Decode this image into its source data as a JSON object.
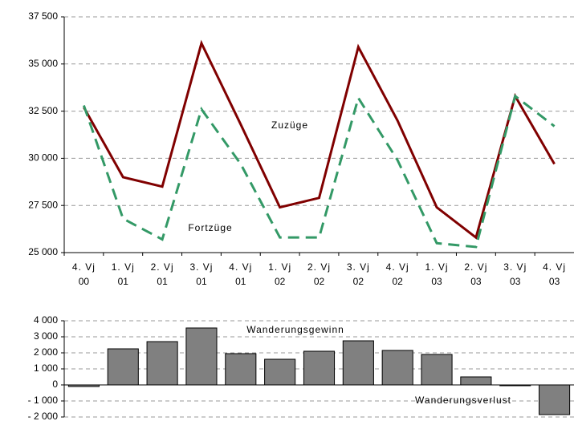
{
  "chart_data": [
    {
      "type": "line",
      "categories": [
        [
          "4. Vj",
          "00"
        ],
        [
          "1. Vj",
          "01"
        ],
        [
          "2. Vj",
          "01"
        ],
        [
          "3. Vj",
          "01"
        ],
        [
          "4. Vj",
          "01"
        ],
        [
          "1. Vj",
          "02"
        ],
        [
          "2. Vj",
          "02"
        ],
        [
          "3. Vj",
          "02"
        ],
        [
          "4. Vj",
          "02"
        ],
        [
          "1. Vj",
          "03"
        ],
        [
          "2. Vj",
          "03"
        ],
        [
          "3. Vj",
          "03"
        ],
        [
          "4. Vj",
          "03"
        ]
      ],
      "series": [
        {
          "name": "Zuzüge",
          "color": "#800000",
          "dash": false,
          "values": [
            32700,
            29000,
            28500,
            36100,
            31800,
            27400,
            27900,
            35900,
            32000,
            27400,
            25800,
            33300,
            29700
          ]
        },
        {
          "name": "Fortzüge",
          "color": "#339966",
          "dash": true,
          "values": [
            32800,
            26800,
            25700,
            32600,
            29700,
            25800,
            25800,
            33200,
            29900,
            25500,
            25300,
            33300,
            31700
          ]
        }
      ],
      "ylim": [
        25000,
        37500
      ],
      "yticks": [
        {
          "value": 25000,
          "label": "25 000"
        },
        {
          "value": 27500,
          "label": "27 500"
        },
        {
          "value": 30000,
          "label": "30 000"
        },
        {
          "value": 32500,
          "label": "32 500"
        },
        {
          "value": 35000,
          "label": "35 000"
        },
        {
          "value": 37500,
          "label": "37 500"
        }
      ],
      "grid": true
    },
    {
      "type": "bar",
      "values": [
        -100,
        2250,
        2700,
        3550,
        1950,
        1600,
        2100,
        2750,
        2150,
        1900,
        500,
        -50,
        -1850
      ],
      "color": "#808080",
      "ylim": [
        -2000,
        4000
      ],
      "yticks": [
        {
          "value": -2000,
          "label": "- 2 000"
        },
        {
          "value": -1000,
          "label": "- 1 000"
        },
        0,
        {
          "value": 1000,
          "label": "1 000"
        },
        {
          "value": 2000,
          "label": "2 000"
        },
        {
          "value": 3000,
          "label": "3 000"
        },
        {
          "value": 4000,
          "label": "4 000"
        }
      ],
      "grid": true,
      "annotations": [
        "Wanderungsgewinn",
        "Wanderungsverlust"
      ]
    }
  ]
}
